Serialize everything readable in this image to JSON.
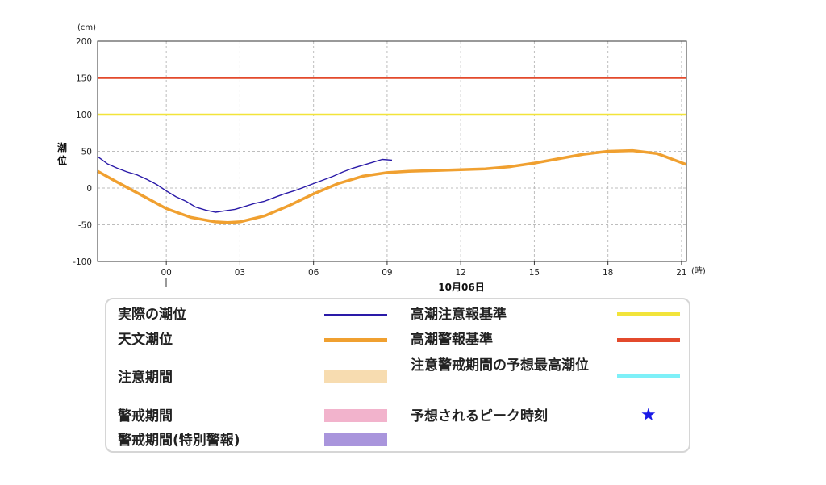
{
  "chart_data": {
    "type": "line",
    "y_unit": "(cm)",
    "ylabel": "潮位",
    "x_unit": "(時)",
    "date_label": "10月06日",
    "ylim": [
      -100,
      200
    ],
    "y_ticks": [
      200,
      150,
      100,
      50,
      0,
      -50,
      -100
    ],
    "x_ticks": [
      "00",
      "03",
      "06",
      "09",
      "12",
      "15",
      "18",
      "21"
    ],
    "x_range_hours": [
      -2.8,
      21.2
    ],
    "grid": true,
    "series": [
      {
        "name": "実際の潮位",
        "color": "#2a1aa8",
        "x": [
          -2.8,
          -2.4,
          -2.0,
          -1.6,
          -1.2,
          -0.8,
          -0.4,
          0.0,
          0.4,
          0.8,
          1.2,
          1.6,
          2.0,
          2.4,
          2.8,
          3.2,
          3.6,
          4.0,
          4.4,
          4.8,
          5.2,
          5.6,
          6.0,
          6.4,
          6.8,
          7.2,
          7.6,
          8.0,
          8.4,
          8.8,
          9.2
        ],
        "y": [
          43,
          33,
          27,
          22,
          18,
          12,
          5,
          -4,
          -12,
          -18,
          -26,
          -30,
          -33,
          -31,
          -29,
          -25,
          -21,
          -18,
          -13,
          -8,
          -4,
          1,
          6,
          11,
          16,
          22,
          27,
          31,
          35,
          39,
          38
        ]
      },
      {
        "name": "天文潮位",
        "color": "#f0a030",
        "x": [
          -2.8,
          -2.0,
          -1.0,
          0.0,
          1.0,
          2.0,
          2.5,
          3.0,
          4.0,
          5.0,
          6.0,
          7.0,
          8.0,
          9.0,
          10.0,
          11.0,
          12.0,
          13.0,
          14.0,
          15.0,
          16.0,
          17.0,
          18.0,
          19.0,
          20.0,
          21.2
        ],
        "y": [
          23,
          8,
          -10,
          -28,
          -40,
          -46,
          -47,
          -46,
          -38,
          -24,
          -8,
          6,
          16,
          21,
          23,
          24,
          25,
          26,
          29,
          34,
          40,
          46,
          50,
          51,
          47,
          32
        ]
      }
    ],
    "reference_lines": [
      {
        "name": "高潮警報基準",
        "value": 150,
        "color": "#e34a2c"
      },
      {
        "name": "高潮注意報基準",
        "value": 100,
        "color": "#f2e43a"
      }
    ]
  },
  "legend": {
    "items": [
      {
        "label": "実際の潮位",
        "color": "#2a1aa8"
      },
      {
        "label": "天文潮位",
        "color": "#f0a030"
      },
      {
        "label": "注意期間",
        "color": "#f7dcb0"
      },
      {
        "label": "警戒期間",
        "color": "#f2b3cc"
      },
      {
        "label": "警戒期間(特別警報)",
        "color": "#a995dc"
      },
      {
        "label": "高潮注意報基準",
        "color": "#f2e43a"
      },
      {
        "label": "高潮警報基準",
        "color": "#e34a2c"
      },
      {
        "label": "注意警戒期間の予想最高潮位",
        "color": "#7ef0f8"
      },
      {
        "label": "予想されるピーク時刻",
        "color": "#1a1ae6"
      }
    ],
    "star_glyph": "★"
  }
}
